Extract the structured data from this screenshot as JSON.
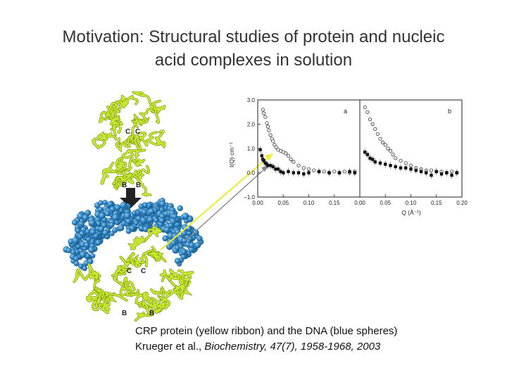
{
  "slide": {
    "title_line1": "Motivation: Structural studies of protein and nucleic",
    "title_line2": "acid complexes in solution",
    "caption_line1": "CRP protein (yellow ribbon) and the DNA (blue spheres)",
    "caption_author": "Krueger et al., ",
    "caption_journal": "Biochemistry, 47(7), 1958-1968, 2003"
  },
  "structure_labels": {
    "top": {
      "c1": "C",
      "c2": "C",
      "b1": "B",
      "b2": "B"
    },
    "bottom": {
      "c1": "C",
      "c2": "C",
      "b1": "B",
      "b2": "B"
    }
  },
  "colors": {
    "protein_ribbon": "#c8e830",
    "protein_outline": "#6f8a10",
    "dna_spheres": "#2f86c4",
    "dna_highlight": "#6fb4e4",
    "arrow_yellow": "#ecec3c",
    "arrow_gray": "#888888",
    "arrow_down": "#222222"
  },
  "chart_data": [
    {
      "type": "scatter",
      "panel": "a",
      "ylabel": "I(Q) cm⁻¹",
      "x_ticks": [
        "0.00",
        "0.05",
        "0.10",
        "0.15"
      ],
      "y_ticks": [
        "3.0",
        "2.0",
        "1.0",
        "0.0",
        "−1.0"
      ],
      "xlim": [
        0.0,
        0.2
      ],
      "ylim": [
        -1.0,
        3.0
      ],
      "series": [
        {
          "marker": "open-circle",
          "x": [
            0.01,
            0.012,
            0.015,
            0.018,
            0.02,
            0.022,
            0.025,
            0.028,
            0.03,
            0.033,
            0.036,
            0.04,
            0.045,
            0.05,
            0.055,
            0.06,
            0.065,
            0.07,
            0.08,
            0.09,
            0.1,
            0.11,
            0.12,
            0.13,
            0.14,
            0.15,
            0.16,
            0.17,
            0.18,
            0.19
          ],
          "y": [
            2.6,
            2.45,
            2.3,
            2.05,
            1.9,
            1.75,
            1.55,
            1.4,
            1.3,
            1.15,
            1.05,
            0.95,
            0.9,
            0.85,
            0.8,
            0.7,
            0.55,
            0.45,
            0.3,
            0.2,
            0.15,
            0.1,
            0.05,
            0.05,
            0.0,
            0.05,
            0.0,
            0.05,
            0.0,
            0.05
          ]
        },
        {
          "marker": "filled-square",
          "x": [
            0.005,
            0.008,
            0.01,
            0.012,
            0.015,
            0.018,
            0.02,
            0.025,
            0.03,
            0.035,
            0.04,
            0.045,
            0.05,
            0.06,
            0.07,
            0.08,
            0.09,
            0.1,
            0.12,
            0.14,
            0.16,
            0.18,
            0.19
          ],
          "y": [
            0.95,
            0.7,
            0.55,
            0.5,
            0.4,
            0.35,
            0.3,
            0.3,
            0.25,
            0.15,
            0.15,
            0.05,
            0.0,
            0.05,
            0.0,
            0.0,
            -0.05,
            0.0,
            0.05,
            0.0,
            0.0,
            0.05,
            0.0
          ]
        }
      ]
    },
    {
      "type": "scatter",
      "panel": "b",
      "x_ticks": [
        "0.00",
        "0.05",
        "0.10",
        "0.15",
        "0.20"
      ],
      "xlabel": "Q (Å⁻¹)",
      "xlim": [
        0.0,
        0.2
      ],
      "ylim": [
        -1.0,
        3.0
      ],
      "series": [
        {
          "marker": "open-circle",
          "x": [
            0.01,
            0.015,
            0.02,
            0.025,
            0.03,
            0.035,
            0.04,
            0.045,
            0.05,
            0.055,
            0.06,
            0.065,
            0.07,
            0.08,
            0.09,
            0.1,
            0.11,
            0.12,
            0.13,
            0.14,
            0.15,
            0.16,
            0.17,
            0.18,
            0.19
          ],
          "y": [
            2.7,
            2.5,
            2.2,
            2.0,
            1.8,
            1.6,
            1.4,
            1.25,
            1.15,
            1.0,
            0.9,
            0.75,
            0.6,
            0.5,
            0.4,
            0.3,
            0.2,
            0.15,
            0.1,
            0.1,
            0.05,
            0.05,
            0.0,
            0.05,
            0.0
          ]
        },
        {
          "marker": "filled-square",
          "x": [
            0.01,
            0.015,
            0.02,
            0.025,
            0.03,
            0.04,
            0.05,
            0.06,
            0.07,
            0.08,
            0.09,
            0.1,
            0.11,
            0.12,
            0.13,
            0.14,
            0.15,
            0.16,
            0.17,
            0.18,
            0.19
          ],
          "y": [
            0.85,
            0.75,
            0.6,
            0.55,
            0.45,
            0.4,
            0.35,
            0.3,
            0.25,
            0.2,
            0.2,
            0.15,
            0.1,
            0.05,
            0.0,
            -0.1,
            0.05,
            -0.05,
            0.0,
            -0.1,
            0.0
          ]
        }
      ]
    }
  ]
}
